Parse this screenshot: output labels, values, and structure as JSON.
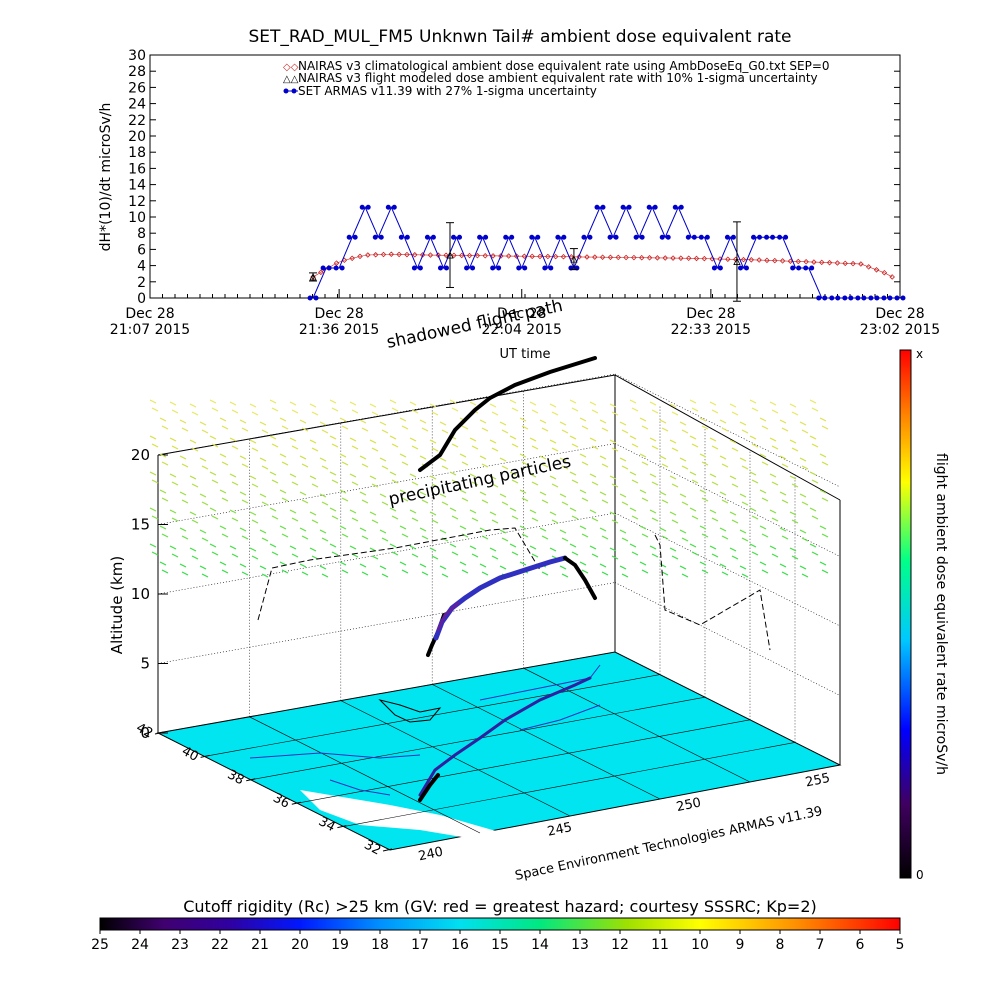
{
  "top_chart": {
    "title": "SET_RAD_MUL_FM5 Unknwn Tail#  ambient dose equivalent rate",
    "ylabel": "dH*(10)/dt microSv/h",
    "xlabel": "UT time",
    "annotation": "shadowed flight path",
    "legend": [
      "NAIRAS v3 climatological ambient dose equivalent rate using AmbDoseEq_G0.txt SEP=0",
      "NAIRAS v3 flight modeled dose ambient equivalent rate with 10% 1-sigma uncertainty",
      "SET ARMAS v11.39 with 27% 1-sigma uncertainty"
    ],
    "xticks": [
      {
        "date": "Dec 28",
        "time": "21:07 2015"
      },
      {
        "date": "Dec 28",
        "time": "21:36 2015"
      },
      {
        "date": "Dec 28",
        "time": "22:04 2015"
      },
      {
        "date": "Dec 28",
        "time": "22:33 2015"
      },
      {
        "date": "Dec 28",
        "time": "23:02 2015"
      }
    ]
  },
  "chart_data": [
    {
      "type": "line",
      "title": "SET_RAD_MUL_FM5 Unknwn Tail#  ambient dose equivalent rate",
      "xlabel": "UT time",
      "ylabel": "dH*(10)/dt microSv/h",
      "xlim": [
        "21:07",
        "23:02"
      ],
      "ylim": [
        0,
        30
      ],
      "yticks": [
        0,
        2,
        4,
        6,
        8,
        10,
        12,
        14,
        16,
        18,
        20,
        22,
        24,
        26,
        28,
        30
      ],
      "series": [
        {
          "name": "SET ARMAS v11.39 with 27% 1-sigma uncertainty",
          "color": "#0000cc",
          "x": [
            "21:32",
            "21:34",
            "21:36",
            "21:38",
            "21:40",
            "21:42",
            "21:44",
            "21:46",
            "21:48",
            "21:50",
            "21:52",
            "21:54",
            "21:56",
            "21:58",
            "22:00",
            "22:02",
            "22:04",
            "22:06",
            "22:08",
            "22:10",
            "22:12",
            "22:14",
            "22:16",
            "22:18",
            "22:20",
            "22:22",
            "22:24",
            "22:26",
            "22:28",
            "22:30",
            "22:32",
            "22:34",
            "22:36",
            "22:38",
            "22:40",
            "22:42",
            "22:44",
            "22:46",
            "22:48",
            "22:50",
            "22:52",
            "22:54",
            "22:56",
            "22:58",
            "23:00",
            "23:02"
          ],
          "y": [
            0,
            3.7,
            3.7,
            7.5,
            11.2,
            7.5,
            11.2,
            7.5,
            3.7,
            7.5,
            3.7,
            7.5,
            3.7,
            7.5,
            3.7,
            7.5,
            3.7,
            7.5,
            3.7,
            7.5,
            3.7,
            7.5,
            11.2,
            7.5,
            11.2,
            7.5,
            11.2,
            7.5,
            11.2,
            7.5,
            7.5,
            3.7,
            7.5,
            3.7,
            7.5,
            7.5,
            7.5,
            3.7,
            3.7,
            0,
            0,
            0,
            0,
            0,
            0,
            0
          ]
        },
        {
          "name": "NAIRAS v3 climatological ambient dose equivalent rate using AmbDoseEq_G0.txt SEP=0",
          "color": "#cc2222",
          "x": [
            "21:32",
            "21:36",
            "21:40",
            "21:44",
            "21:50",
            "22:00",
            "22:10",
            "22:20",
            "22:30",
            "22:40",
            "22:50",
            "22:56",
            "23:00",
            "23:02"
          ],
          "y": [
            2.6,
            4.5,
            5.3,
            5.4,
            5.3,
            5.2,
            5.1,
            5.0,
            4.9,
            4.7,
            4.4,
            4.2,
            3.0,
            2.0
          ]
        }
      ],
      "error_bars": [
        {
          "x": "21:32",
          "y": 2.6,
          "err": 0.5
        },
        {
          "x": "21:53",
          "y": 5.3,
          "err": 4.0
        },
        {
          "x": "22:12",
          "y": 4.8,
          "err": 1.3
        },
        {
          "x": "22:37",
          "y": 4.5,
          "err": 4.9
        }
      ]
    },
    {
      "type": "scatter",
      "title": "",
      "zlabel": "Altitude (km)",
      "zticks": [
        0,
        5,
        10,
        15,
        20
      ],
      "zlim": [
        0,
        20
      ],
      "lat_ticks": [
        42,
        40,
        38,
        36,
        34,
        32
      ],
      "lon_ticks": [
        240,
        245,
        250,
        255
      ],
      "annotations": [
        "precipitating particles",
        "Space Environment Technologies ARMAS v11.39"
      ],
      "colorbar": {
        "label": "flight ambient dose equivalent rate microSv/h",
        "top": "x",
        "bottom": "0",
        "colors": [
          "#000000",
          "#400060",
          "#0000ff",
          "#00c8ff",
          "#00ff88",
          "#ffff00",
          "#ff8000",
          "#ff0000"
        ]
      },
      "flight_track": {
        "lon": [
          241.5,
          243.0,
          245.0,
          247.0,
          249.0,
          250.5
        ],
        "lat": [
          33.0,
          35.0,
          36.5,
          37.5,
          38.5,
          39.0
        ],
        "alt_km": [
          5,
          9,
          11,
          12,
          12.5,
          12
        ]
      }
    },
    {
      "type": "heatmap",
      "title": "Cutoff rigidity (Rc) >25 km (GV: red = greatest hazard; courtesy SSSRC; Kp=2)",
      "ticks": [
        "25",
        "24",
        "23",
        "22",
        "21",
        "20",
        "19",
        "18",
        "17",
        "16",
        "15",
        "14",
        "13",
        "12",
        "11",
        "10",
        "9",
        "8",
        "7",
        "6",
        "5"
      ],
      "colors": [
        "#000000",
        "#2a0040",
        "#400070",
        "#3000a0",
        "#0018ff",
        "#0070ff",
        "#00c0ff",
        "#00e8e0",
        "#00e880",
        "#30e030",
        "#a0e000",
        "#ffff00",
        "#ffb000",
        "#ff6000",
        "#ff0000"
      ]
    }
  ],
  "scene": {
    "alt_label": "Altitude (km)",
    "precip_label": "precipitating particles",
    "credit": "Space Environment Technologies ARMAS v11.39"
  },
  "colorbar_right": {
    "label": "flight ambient dose equivalent rate microSv/h",
    "top": "x",
    "bottom": "0"
  },
  "colorbar_bottom": {
    "title": "Cutoff rigidity (Rc) >25 km (GV: red = greatest hazard; courtesy SSSRC; Kp=2)"
  }
}
